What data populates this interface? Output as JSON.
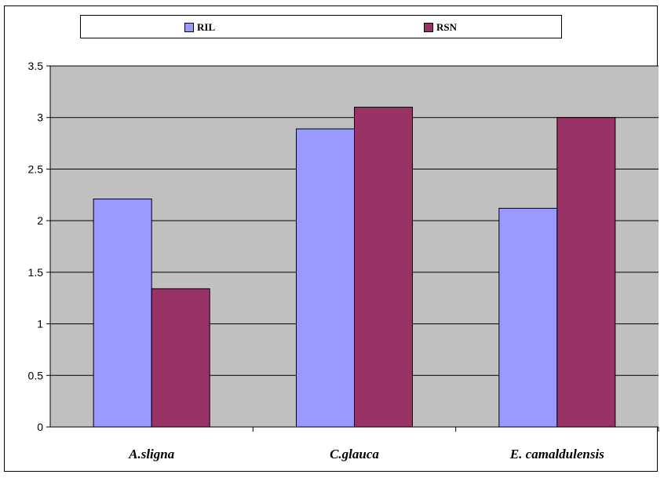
{
  "chart_data": {
    "type": "bar",
    "categories": [
      "A.sligna",
      "C.glauca",
      "E. camaldulensis"
    ],
    "series": [
      {
        "name": "RIL",
        "values": [
          2.21,
          2.89,
          2.12
        ],
        "color": "#9999ff"
      },
      {
        "name": "RSN",
        "values": [
          1.34,
          3.1,
          3.0
        ],
        "color": "#993366"
      }
    ],
    "ylim": [
      0,
      3.5
    ],
    "yticks": [
      "0",
      "0.5",
      "1",
      "1.5",
      "2",
      "2.5",
      "3",
      "3.5"
    ],
    "grid": true,
    "plot_background": "#c0c0c0",
    "legend_position": "top"
  }
}
